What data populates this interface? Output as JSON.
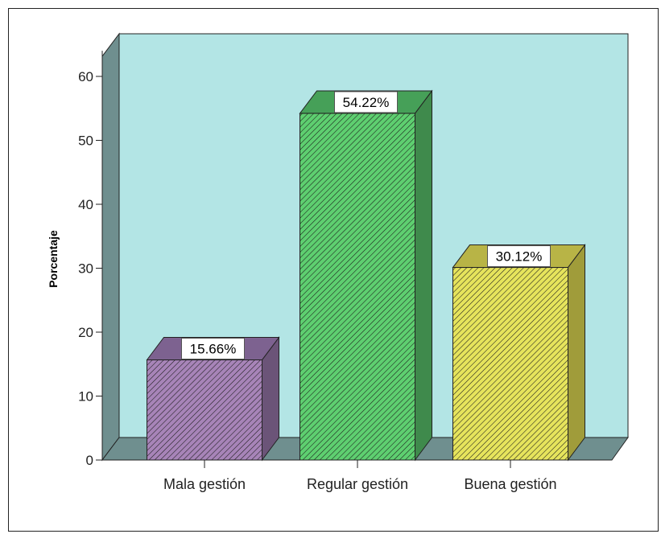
{
  "chart_data": {
    "type": "bar",
    "title": "",
    "xlabel": "",
    "ylabel": "Porcentaje",
    "ylim": [
      0,
      65
    ],
    "yticks": [
      0,
      10,
      20,
      30,
      40,
      50,
      60
    ],
    "categories": [
      "Mala gestión",
      "Regular gestión",
      "Buena gestión"
    ],
    "values": [
      15.66,
      54.22,
      30.12
    ],
    "data_labels": [
      "15.66%",
      "54.22%",
      "30.12%"
    ],
    "grid": false,
    "legend": "none",
    "style": "3d-hatched",
    "colors": {
      "plot_background": "#b3e5e5",
      "side_wall": "#6f8f8f",
      "floor": "#6f8f8f",
      "bars": [
        {
          "front": "#a784b8",
          "side": "#6b5478",
          "top": "#7d6290"
        },
        {
          "front": "#5ecf70",
          "side": "#3f8a4c",
          "top": "#46a058"
        },
        {
          "front": "#e6e45c",
          "side": "#a09c3a",
          "top": "#b8b446"
        }
      ]
    }
  }
}
